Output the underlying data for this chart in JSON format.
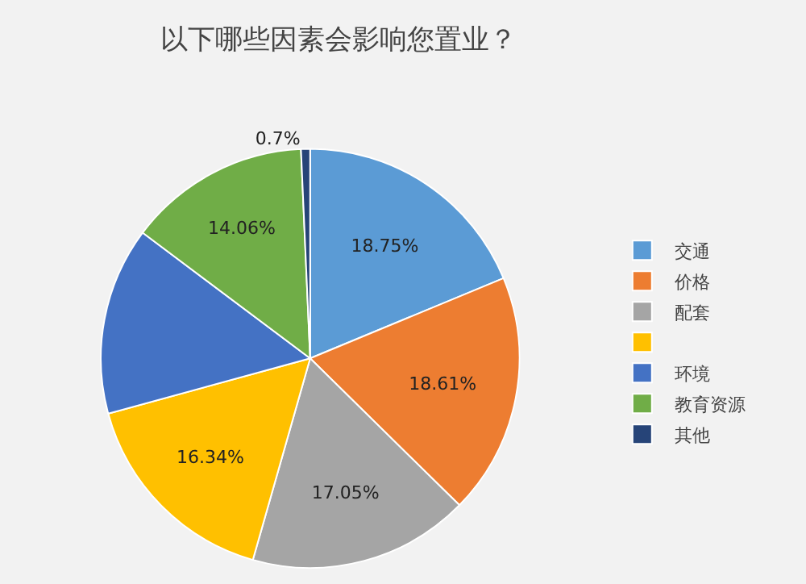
{
  "chart_data": {
    "type": "pie",
    "title": "以下哪些因素会影响您置业？",
    "categories": [
      "交通",
      "价格",
      "配套",
      null,
      "环境",
      "教育资源",
      "其他"
    ],
    "values": [
      18.75,
      18.61,
      17.05,
      16.34,
      14.49,
      14.06,
      0.7
    ],
    "value_labels": [
      "18.75%",
      "18.61%",
      "17.05%",
      "16.34%",
      null,
      "14.06%",
      "0.7%"
    ],
    "colors": [
      "#5b9bd5",
      "#ed7d31",
      "#a5a5a5",
      "#ffc000",
      "#4472c4",
      "#70ad47",
      "#264478"
    ],
    "legend": "right"
  }
}
